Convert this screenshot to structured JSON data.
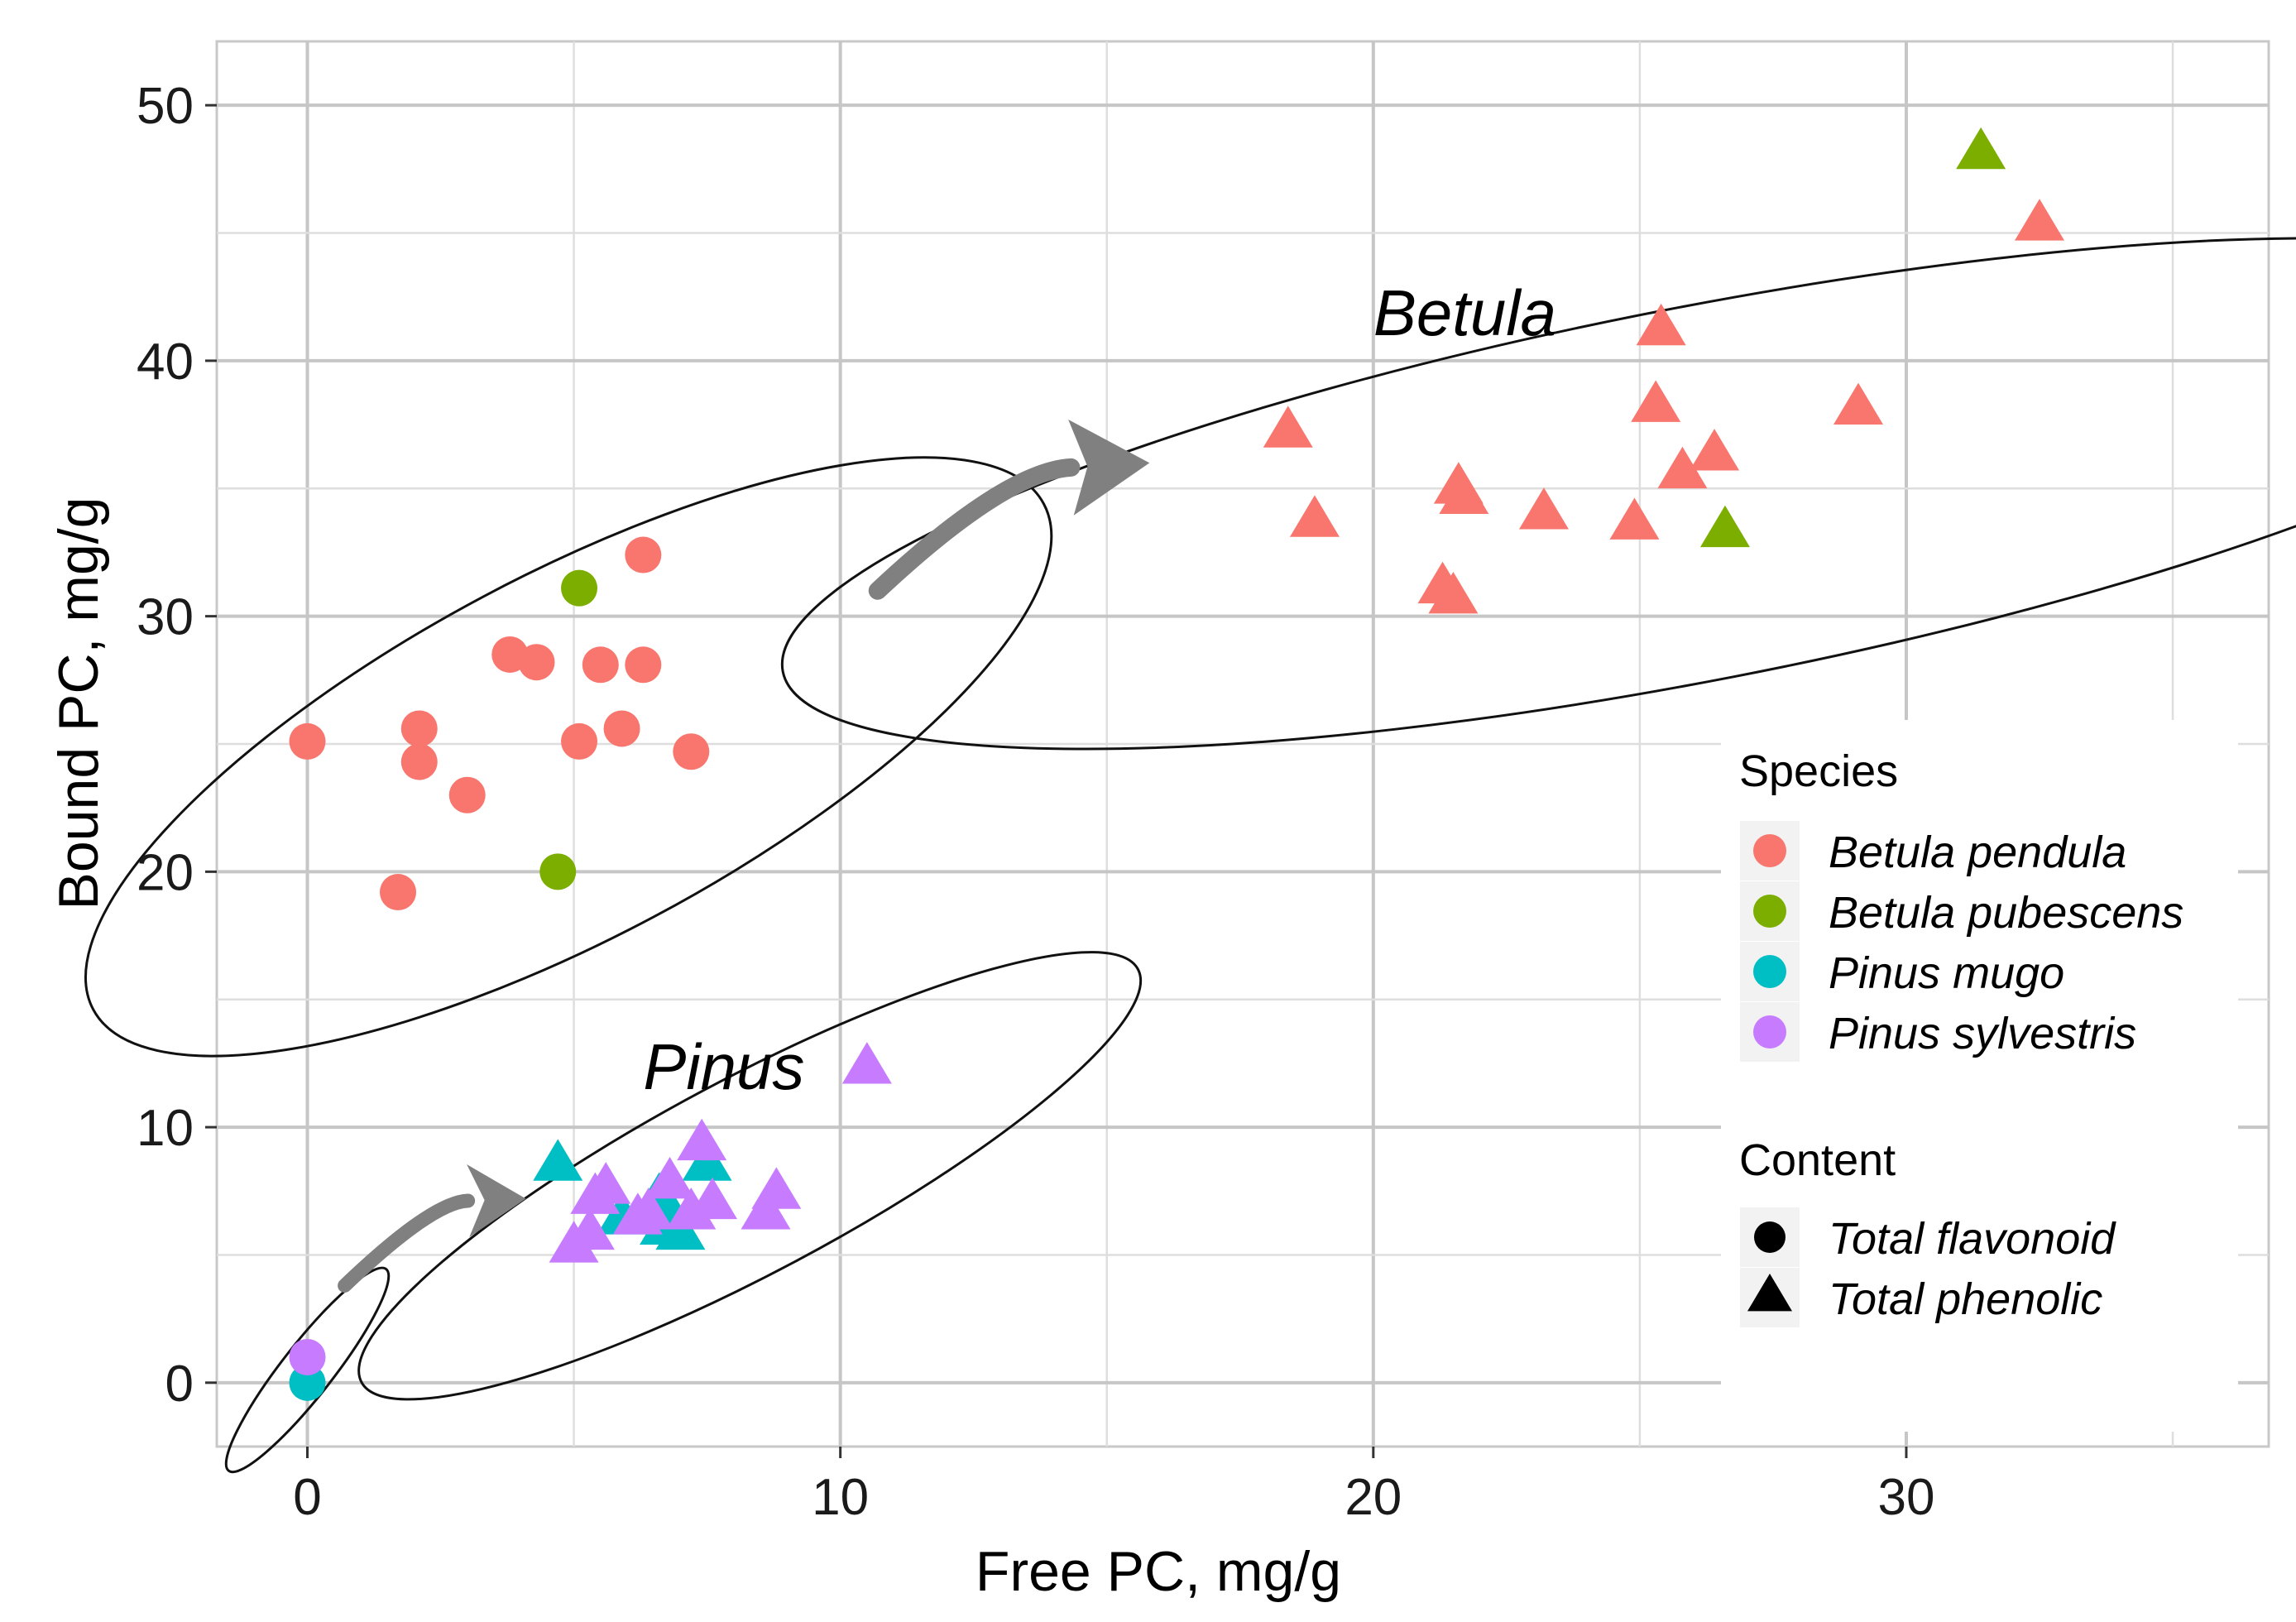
{
  "chart_data": {
    "type": "scatter",
    "xlabel": "Free PC, mg/g",
    "ylabel": "Bound PC, mg/g",
    "xlim": [
      -1.7,
      36.8
    ],
    "ylim": [
      -2.5,
      52.5
    ],
    "x_ticks": [
      0,
      10,
      20,
      30
    ],
    "y_ticks": [
      0,
      10,
      20,
      30,
      40,
      50
    ],
    "grid": true,
    "legend_position": "right",
    "colors": {
      "Betula pendula": "#F8766D",
      "Betula pubescens": "#7CAE00",
      "Pinus mugo": "#00BFC4",
      "Pinus sylvestris": "#C77CFF"
    },
    "legend": {
      "species_title": "Species",
      "species": [
        "Betula pendula",
        "Betula pubescens",
        "Pinus mugo",
        "Pinus sylvestris"
      ],
      "content_title": "Content",
      "content": [
        {
          "label": "Total flavonoid",
          "shape": "circle"
        },
        {
          "label": "Total phenolic",
          "shape": "triangle"
        }
      ]
    },
    "annotations": [
      {
        "text": "Betula",
        "x": 20.0,
        "y": 41
      },
      {
        "text": "Pinus",
        "x": 6.3,
        "y": 11.5
      }
    ],
    "ellipses": [
      {
        "name": "betula-flavonoid",
        "cx": 4.9,
        "cy": 24.5,
        "rx": 10.1,
        "ry": 7.1,
        "angle": 28
      },
      {
        "name": "betula-phenolic",
        "cx": 26.1,
        "cy": 34.8,
        "rx": 17.5,
        "ry": 7.3,
        "angle": 11
      },
      {
        "name": "pinus-phenolic",
        "cx": 8.3,
        "cy": 8.1,
        "rx": 8.25,
        "ry": 3.8,
        "angle": 28
      },
      {
        "name": "pinus-flavonoid",
        "cx": 0.0,
        "cy": 0.5,
        "rx": 2.4,
        "ry": 1.0,
        "angle": 52
      }
    ],
    "arrows": [
      {
        "name": "arrow-to-betula",
        "from": [
          10.7,
          31
        ],
        "to": [
          15.8,
          36.0
        ]
      },
      {
        "name": "arrow-to-pinus",
        "from": [
          0.7,
          3.8
        ],
        "to": [
          4.1,
          7.2
        ]
      }
    ],
    "series": [
      {
        "species": "Betula pendula",
        "content": "Total flavonoid",
        "points": [
          [
            0.0,
            25.1
          ],
          [
            2.1,
            25.6
          ],
          [
            2.1,
            24.3
          ],
          [
            3.0,
            23.0
          ],
          [
            1.7,
            19.2
          ],
          [
            3.8,
            28.5
          ],
          [
            4.3,
            28.2
          ],
          [
            5.1,
            25.1
          ],
          [
            5.5,
            28.1
          ],
          [
            5.9,
            25.6
          ],
          [
            6.3,
            28.1
          ],
          [
            6.3,
            32.4
          ],
          [
            7.2,
            24.7
          ]
        ]
      },
      {
        "species": "Betula pubescens",
        "content": "Total flavonoid",
        "points": [
          [
            5.1,
            31.1
          ],
          [
            4.7,
            20.0
          ]
        ]
      },
      {
        "species": "Pinus mugo",
        "content": "Total flavonoid",
        "points": [
          [
            0.0,
            0.0
          ]
        ]
      },
      {
        "species": "Pinus sylvestris",
        "content": "Total flavonoid",
        "points": [
          [
            0.0,
            1.0
          ]
        ]
      },
      {
        "species": "Betula pendula",
        "content": "Total phenolic",
        "points": [
          [
            18.4,
            37.2
          ],
          [
            18.9,
            33.7
          ],
          [
            21.3,
            31.1
          ],
          [
            21.5,
            30.7
          ],
          [
            21.6,
            35.0
          ],
          [
            21.7,
            34.6
          ],
          [
            23.2,
            34.0
          ],
          [
            24.9,
            33.6
          ],
          [
            25.3,
            38.2
          ],
          [
            25.4,
            41.2
          ],
          [
            25.8,
            35.6
          ],
          [
            26.4,
            36.3
          ],
          [
            29.1,
            38.1
          ],
          [
            32.5,
            45.3
          ]
        ]
      },
      {
        "species": "Betula pubescens",
        "content": "Total phenolic",
        "points": [
          [
            26.6,
            33.3
          ],
          [
            31.4,
            48.1
          ]
        ]
      },
      {
        "species": "Pinus mugo",
        "content": "Total phenolic",
        "points": [
          [
            4.7,
            8.5
          ],
          [
            5.9,
            6.4
          ],
          [
            6.6,
            7.2
          ],
          [
            6.7,
            6.0
          ],
          [
            6.8,
            6.6
          ],
          [
            7.0,
            5.8
          ],
          [
            7.5,
            8.5
          ]
        ]
      },
      {
        "species": "Pinus sylvestris",
        "content": "Total phenolic",
        "points": [
          [
            5.0,
            5.3
          ],
          [
            5.3,
            5.8
          ],
          [
            5.4,
            7.2
          ],
          [
            5.6,
            7.6
          ],
          [
            6.2,
            6.4
          ],
          [
            6.4,
            6.6
          ],
          [
            6.8,
            7.8
          ],
          [
            7.2,
            6.6
          ],
          [
            7.4,
            9.3
          ],
          [
            7.6,
            7.0
          ],
          [
            8.6,
            6.6
          ],
          [
            8.8,
            7.4
          ],
          [
            10.5,
            12.3
          ]
        ]
      }
    ]
  }
}
